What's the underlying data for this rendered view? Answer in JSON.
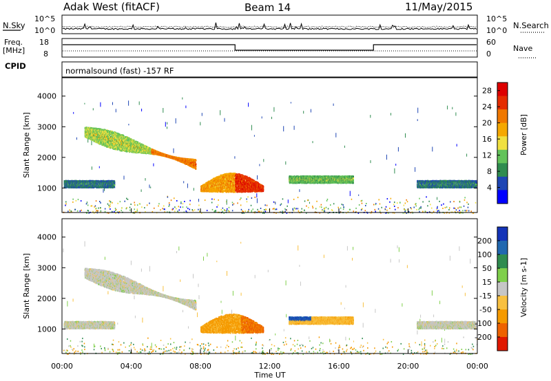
{
  "header": {
    "station": "Adak West (fitACF)",
    "beam": "Beam 14",
    "date": "11/May/2015"
  },
  "nsky_panel": {
    "left_label": "N.Sky",
    "right_label": "N.Search",
    "left_ticks": [
      "10^5",
      "10^0"
    ],
    "right_ticks": [
      "10^5",
      "10^0"
    ]
  },
  "freq_panel": {
    "left_label_1": "Freq.",
    "left_label_2": "[MHz]",
    "right_label": "Nave",
    "left_ticks": [
      "18",
      "8"
    ],
    "right_ticks": [
      "60",
      "0"
    ]
  },
  "cpid_panel": {
    "label": "CPID",
    "text": "normalsound (fast) -157 RF"
  },
  "chart_data": [
    {
      "type": "heatmap",
      "ylabel": "Slant Range [km]",
      "yticks": [
        "1000",
        "2000",
        "3000",
        "4000"
      ],
      "ylim": [
        200,
        4600
      ],
      "xlabel": "Time UT",
      "xticks": [
        "00:00",
        "04:00",
        "08:00",
        "12:00",
        "16:00",
        "20:00",
        "00:00"
      ],
      "xlim_hours": [
        0,
        24
      ],
      "colorbar": {
        "label": "Power [dB]",
        "ticks": [
          "4",
          "8",
          "12",
          "16",
          "20",
          "24",
          "28"
        ],
        "range": [
          0,
          30
        ],
        "colors": [
          "#0000ff",
          "#1e46b4",
          "#2f8c4f",
          "#63c35a",
          "#f0e040",
          "#f5a800",
          "#f07800",
          "#e52c00",
          "#dd0000"
        ]
      },
      "features": [
        {
          "name": "morning-band",
          "t_start": 0.1,
          "t_end": 3.0,
          "range_km": 1150,
          "level": 6
        },
        {
          "name": "descending-band",
          "t_start": 1.3,
          "t_end": 7.7,
          "range_start_km": 2850,
          "range_end_km": 1800,
          "level": 12
        },
        {
          "name": "midday-blob",
          "t_start": 8.0,
          "t_end": 11.6,
          "range_km": 1050,
          "level": 18
        },
        {
          "name": "afternoon-band",
          "t_start": 13.1,
          "t_end": 16.8,
          "range_km": 1300,
          "level": 10
        },
        {
          "name": "evening-band",
          "t_start": 20.5,
          "t_end": 23.9,
          "range_km": 1150,
          "level": 6
        }
      ]
    },
    {
      "type": "heatmap",
      "ylabel": "Slant Range [km]",
      "yticks": [
        "1000",
        "2000",
        "3000",
        "4000"
      ],
      "ylim": [
        200,
        4600
      ],
      "xlabel": "Time UT",
      "xticks": [
        "00:00",
        "04:00",
        "08:00",
        "12:00",
        "16:00",
        "20:00",
        "00:00"
      ],
      "xlim_hours": [
        0,
        24
      ],
      "colorbar": {
        "label": "Velocity [m s-1]",
        "ticks": [
          "200",
          "100",
          "50",
          "15",
          "-15",
          "-50",
          "-100",
          "-200"
        ],
        "colors": [
          "#1433b8",
          "#2168b0",
          "#2f8c4f",
          "#7fcf4b",
          "#c6c6c6",
          "#f8c040",
          "#f59a00",
          "#ee6200",
          "#e01800"
        ]
      },
      "features": [
        {
          "name": "morning-band",
          "t_start": 0.1,
          "t_end": 3.0,
          "range_km": 1150,
          "velocity": 0
        },
        {
          "name": "descending-band",
          "t_start": 1.3,
          "t_end": 7.7,
          "range_start_km": 2850,
          "range_end_km": 1800,
          "velocity": 0
        },
        {
          "name": "midday-blob",
          "t_start": 8.0,
          "t_end": 11.6,
          "range_km": 1050,
          "velocity": -60
        },
        {
          "name": "afternoon-band",
          "t_start": 13.1,
          "t_end": 16.8,
          "range_km": 1300,
          "velocity": -40
        },
        {
          "name": "evening-band",
          "t_start": 20.5,
          "t_end": 23.9,
          "range_km": 1150,
          "velocity": 0
        }
      ]
    }
  ]
}
